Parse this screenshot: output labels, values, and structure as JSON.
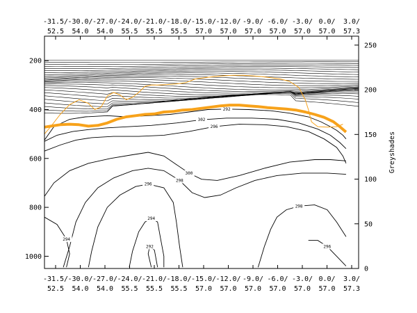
{
  "chart_data": {
    "type": "line",
    "axes": {
      "x_top_labels": [
        [
          "-31.5/",
          "52.5"
        ],
        [
          "-30.0/",
          "54.0"
        ],
        [
          "-27.0/",
          "54.0"
        ],
        [
          "-24.0/",
          "55.5"
        ],
        [
          "-21.0/",
          "55.5"
        ],
        [
          "-18.0/",
          "55.5"
        ],
        [
          "-15.0/",
          "57.0"
        ],
        [
          "-12.0/",
          "57.0"
        ],
        [
          "-9.0/",
          "57.0"
        ],
        [
          "-6.0/",
          "57.0"
        ],
        [
          "-3.0/",
          "57.0"
        ],
        [
          "0.0/",
          "57.0"
        ],
        [
          "3.0/",
          "57.3"
        ]
      ],
      "x_bottom_labels": [
        [
          "-31.5/",
          "52.5"
        ],
        [
          "-30.0/",
          "54.0"
        ],
        [
          "-27.0/",
          "54.0"
        ],
        [
          "-24.0/",
          "55.5"
        ],
        [
          "-21.0/",
          "55.5"
        ],
        [
          "-18.0/",
          "55.5"
        ],
        [
          "-15.0/",
          "57.0"
        ],
        [
          "-12.0/",
          "57.0"
        ],
        [
          "-9.0/",
          "57.0"
        ],
        [
          "-6.0/",
          "57.0"
        ],
        [
          "-3.0/",
          "57.0"
        ],
        [
          "0.0/",
          "57.0"
        ],
        [
          "3.0/",
          "57.3"
        ]
      ],
      "y_left": {
        "range": [
          1050,
          100
        ],
        "ticks": [
          "200",
          "400",
          "600",
          "800",
          "1000"
        ]
      },
      "y_right": {
        "label": "Greyshades",
        "range": [
          0,
          260
        ],
        "ticks": [
          "0",
          "50",
          "100",
          "150",
          "200",
          "250"
        ]
      }
    },
    "contours": [
      {
        "label": "292",
        "points": [
          [
            0,
            525
          ],
          [
            3,
            470
          ],
          [
            8,
            440
          ],
          [
            13,
            430
          ],
          [
            20,
            425
          ],
          [
            26,
            430
          ],
          [
            33,
            425
          ],
          [
            40,
            420
          ],
          [
            46,
            410
          ],
          [
            52,
            400
          ],
          [
            58,
            398
          ],
          [
            65,
            400
          ],
          [
            72,
            405
          ],
          [
            78,
            415
          ],
          [
            84,
            430
          ],
          [
            88,
            450
          ],
          [
            91,
            470
          ],
          [
            93,
            485
          ],
          [
            95,
            505
          ],
          [
            96,
            520
          ]
        ]
      },
      {
        "label": "296",
        "points": [
          [
            0,
            570
          ],
          [
            5,
            545
          ],
          [
            10,
            525
          ],
          [
            15,
            515
          ],
          [
            22,
            510
          ],
          [
            30,
            510
          ],
          [
            38,
            505
          ],
          [
            46,
            490
          ],
          [
            54,
            470
          ],
          [
            62,
            460
          ],
          [
            70,
            462
          ],
          [
            77,
            470
          ],
          [
            84,
            490
          ],
          [
            89,
            520
          ],
          [
            93,
            555
          ],
          [
            95,
            590
          ],
          [
            96,
            620
          ]
        ]
      },
      {
        "label": "302",
        "points": [
          [
            0,
            530
          ],
          [
            4,
            505
          ],
          [
            9,
            490
          ],
          [
            14,
            482
          ],
          [
            20,
            475
          ],
          [
            27,
            470
          ],
          [
            34,
            465
          ],
          [
            42,
            455
          ],
          [
            50,
            442
          ],
          [
            58,
            435
          ],
          [
            66,
            435
          ],
          [
            74,
            440
          ],
          [
            81,
            455
          ],
          [
            87,
            480
          ],
          [
            91,
            505
          ],
          [
            94,
            535
          ],
          [
            96,
            560
          ]
        ]
      },
      {
        "label": "300",
        "points": [
          [
            0,
            755
          ],
          [
            3,
            700
          ],
          [
            8,
            650
          ],
          [
            14,
            620
          ],
          [
            21,
            600
          ],
          [
            28,
            585
          ],
          [
            33,
            575
          ],
          [
            38,
            590
          ],
          [
            42,
            625
          ],
          [
            46,
            660
          ],
          [
            50,
            685
          ],
          [
            55,
            690
          ],
          [
            62,
            670
          ],
          [
            70,
            640
          ],
          [
            78,
            615
          ],
          [
            86,
            605
          ],
          [
            91,
            605
          ],
          [
            96,
            610
          ]
        ]
      },
      {
        "label": "298",
        "points": [
          [
            6,
            1045
          ],
          [
            8,
            960
          ],
          [
            10,
            860
          ],
          [
            13,
            780
          ],
          [
            17,
            720
          ],
          [
            22,
            680
          ],
          [
            28,
            650
          ],
          [
            33,
            640
          ],
          [
            38,
            650
          ],
          [
            43,
            690
          ],
          [
            47,
            740
          ],
          [
            51,
            760
          ],
          [
            56,
            750
          ],
          [
            61,
            720
          ],
          [
            67,
            690
          ],
          [
            74,
            670
          ],
          [
            82,
            660
          ],
          [
            90,
            660
          ],
          [
            96,
            665
          ]
        ]
      },
      {
        "label": "296",
        "points": [
          [
            14,
            1045
          ],
          [
            15,
            980
          ],
          [
            17,
            880
          ],
          [
            20,
            800
          ],
          [
            24,
            750
          ],
          [
            29,
            715
          ],
          [
            33,
            705
          ],
          [
            38,
            720
          ],
          [
            41,
            780
          ],
          [
            42,
            860
          ],
          [
            43,
            960
          ],
          [
            44,
            1045
          ]
        ]
      },
      {
        "label": "294",
        "points": [
          [
            27,
            1045
          ],
          [
            28,
            980
          ],
          [
            30,
            900
          ],
          [
            32,
            860
          ],
          [
            34,
            845
          ],
          [
            36,
            860
          ],
          [
            37,
            930
          ],
          [
            38,
            1000
          ],
          [
            38,
            1045
          ]
        ]
      },
      {
        "label": "292",
        "points": [
          [
            34,
            1045
          ],
          [
            33,
            990
          ],
          [
            33.5,
            960
          ],
          [
            35,
            975
          ],
          [
            36,
            1045
          ]
        ]
      },
      {
        "label": "294",
        "points": [
          [
            0,
            840
          ],
          [
            4,
            870
          ],
          [
            7,
            930
          ],
          [
            8,
            990
          ],
          [
            7,
            1045
          ]
        ]
      },
      {
        "label": "296",
        "points": [
          [
            96,
            1040
          ],
          [
            93,
            1000
          ],
          [
            90,
            960
          ],
          [
            87,
            935
          ],
          [
            84,
            935
          ]
        ]
      },
      {
        "label": "298",
        "points": [
          [
            68,
            1045
          ],
          [
            70,
            960
          ],
          [
            72,
            890
          ],
          [
            74,
            840
          ],
          [
            77,
            810
          ],
          [
            81,
            795
          ],
          [
            86,
            790
          ],
          [
            90,
            810
          ],
          [
            93,
            860
          ],
          [
            96,
            920
          ]
        ]
      }
    ],
    "series": [
      {
        "points": [
          [
            0,
            472
          ],
          [
            2,
            468
          ],
          [
            5,
            462
          ],
          [
            8,
            460
          ],
          [
            11,
            462
          ],
          [
            14,
            468
          ],
          [
            17,
            465
          ],
          [
            20,
            455
          ],
          [
            23,
            440
          ],
          [
            26,
            430
          ],
          [
            29,
            425
          ],
          [
            32,
            420
          ],
          [
            35,
            418
          ],
          [
            38,
            410
          ],
          [
            41,
            408
          ],
          [
            44,
            402
          ],
          [
            47,
            400
          ],
          [
            50,
            395
          ],
          [
            53,
            390
          ],
          [
            56,
            385
          ],
          [
            59,
            382
          ],
          [
            62,
            382
          ],
          [
            65,
            385
          ],
          [
            68,
            388
          ],
          [
            71,
            392
          ],
          [
            74,
            395
          ],
          [
            77,
            398
          ],
          [
            80,
            402
          ],
          [
            83,
            410
          ],
          [
            86,
            420
          ],
          [
            89,
            432
          ],
          [
            92,
            450
          ],
          [
            94,
            470
          ],
          [
            96,
            492
          ]
        ]
      },
      {
        "points": [
          [
            0,
            500
          ],
          [
            2,
            470
          ],
          [
            5,
            420
          ],
          [
            8,
            380
          ],
          [
            11,
            360
          ],
          [
            14,
            375
          ],
          [
            16,
            400
          ],
          [
            18,
            390
          ],
          [
            20,
            345
          ],
          [
            22,
            330
          ],
          [
            24,
            340
          ],
          [
            26,
            360
          ],
          [
            28,
            350
          ],
          [
            30,
            330
          ],
          [
            32,
            305
          ],
          [
            34,
            300
          ],
          [
            36,
            300
          ],
          [
            39,
            298
          ],
          [
            42,
            295
          ],
          [
            45,
            290
          ],
          [
            48,
            275
          ],
          [
            51,
            270
          ],
          [
            54,
            265
          ],
          [
            57,
            262
          ],
          [
            60,
            260
          ],
          [
            63,
            260
          ],
          [
            66,
            262
          ],
          [
            69,
            265
          ],
          [
            72,
            270
          ],
          [
            75,
            275
          ],
          [
            78,
            285
          ],
          [
            81,
            310
          ],
          [
            83,
            360
          ],
          [
            84,
            400
          ],
          [
            85,
            450
          ],
          [
            87,
            470
          ],
          [
            90,
            472
          ],
          [
            93,
            470
          ],
          [
            95,
            460
          ]
        ]
      }
    ]
  }
}
